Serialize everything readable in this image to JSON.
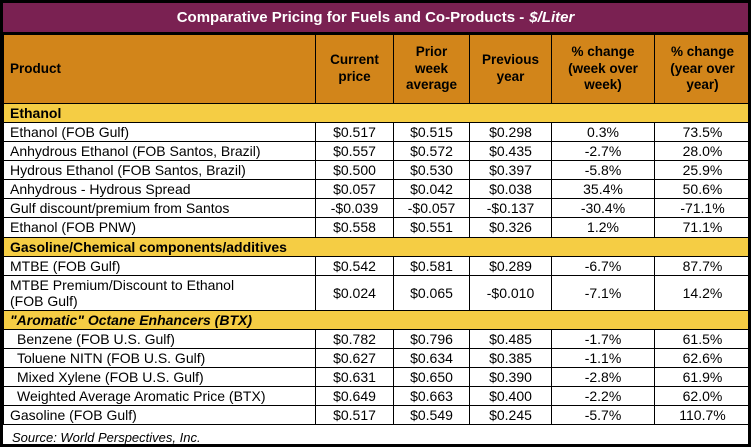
{
  "title_bar": {
    "text_main": "Comparative Pricing for Fuels and Co-Products -",
    "text_unit": "$/Liter"
  },
  "source_note": "Source: World Perspectives, Inc.",
  "colors": {
    "title_bar_bg": "#7A2152",
    "title_bar_text": "#FFFFFF",
    "column_header_bg": "#D2851A",
    "section_header_bg": "#F5CD44",
    "border": "#000000",
    "row_bg": "#FFFFFF",
    "body_text": "#000000"
  },
  "chart_data": {
    "type": "table",
    "title": "Comparative Pricing for Fuels and Co-Products - $/Liter",
    "columns": [
      "Product",
      "Current\nprice",
      "Prior\nweek\naverage",
      "Previous\nyear",
      "% change\n(week over\nweek)",
      "% change\n(year over\nyear)"
    ],
    "sections": [
      {
        "label": "Ethanol",
        "italic": false,
        "rows": [
          {
            "product": "Ethanol (FOB Gulf)",
            "indent": false,
            "values": [
              "$0.517",
              "$0.515",
              "$0.298",
              "0.3%",
              "73.5%"
            ]
          },
          {
            "product": "Anhydrous Ethanol (FOB Santos, Brazil)",
            "indent": false,
            "values": [
              "$0.557",
              "$0.572",
              "$0.435",
              "-2.7%",
              "28.0%"
            ]
          },
          {
            "product": "Hydrous Ethanol (FOB Santos, Brazil)",
            "indent": false,
            "values": [
              "$0.500",
              "$0.530",
              "$0.397",
              "-5.8%",
              "25.9%"
            ]
          },
          {
            "product": "Anhydrous - Hydrous Spread",
            "indent": false,
            "values": [
              "$0.057",
              "$0.042",
              "$0.038",
              "35.4%",
              "50.6%"
            ]
          },
          {
            "product": "Gulf discount/premium from Santos",
            "indent": false,
            "values": [
              "-$0.039",
              "-$0.057",
              "-$0.137",
              "-30.4%",
              "-71.1%"
            ]
          },
          {
            "product": "Ethanol (FOB PNW)",
            "indent": false,
            "values": [
              "$0.558",
              "$0.551",
              "$0.326",
              "1.2%",
              "71.1%"
            ]
          }
        ]
      },
      {
        "label": "Gasoline/Chemical components/additives",
        "italic": false,
        "rows": [
          {
            "product": "MTBE (FOB Gulf)",
            "indent": false,
            "values": [
              "$0.542",
              "$0.581",
              "$0.289",
              "-6.7%",
              "87.7%"
            ]
          },
          {
            "product": "MTBE Premium/Discount to Ethanol\n(FOB Gulf)",
            "indent": false,
            "values": [
              "$0.024",
              "$0.065",
              "-$0.010",
              "-7.1%",
              "14.2%"
            ]
          }
        ]
      },
      {
        "label": "\"Aromatic\" Octane Enhancers (BTX)",
        "italic": true,
        "rows": [
          {
            "product": "Benzene (FOB U.S. Gulf)",
            "indent": true,
            "values": [
              "$0.782",
              "$0.796",
              "$0.485",
              "-1.7%",
              "61.5%"
            ]
          },
          {
            "product": "Toluene NITN (FOB U.S. Gulf)",
            "indent": true,
            "values": [
              "$0.627",
              "$0.634",
              "$0.385",
              "-1.1%",
              "62.6%"
            ]
          },
          {
            "product": "Mixed Xylene (FOB U.S. Gulf)",
            "indent": true,
            "values": [
              "$0.631",
              "$0.650",
              "$0.390",
              "-2.8%",
              "61.9%"
            ]
          },
          {
            "product": "Weighted Average Aromatic Price (BTX)",
            "indent": true,
            "values": [
              "$0.649",
              "$0.663",
              "$0.400",
              "-2.2%",
              "62.0%"
            ]
          },
          {
            "product": "Gasoline (FOB Gulf)",
            "indent": false,
            "values": [
              "$0.517",
              "$0.549",
              "$0.245",
              "-5.7%",
              "110.7%"
            ]
          }
        ]
      }
    ]
  }
}
